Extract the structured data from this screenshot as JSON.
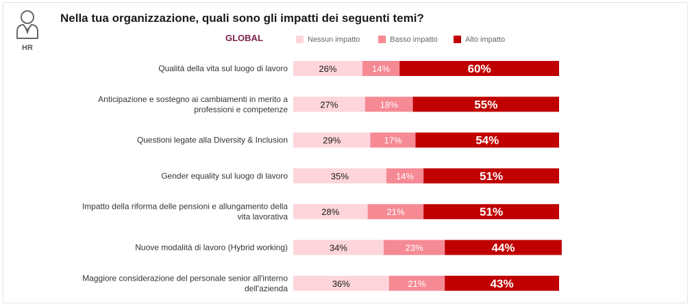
{
  "header": {
    "title": "Nella tua organizzazione, quali sono gli impatti dei seguenti temi?",
    "subtitle": "GLOBAL",
    "hr_label": "HR"
  },
  "colors": {
    "nessun": "#fdd5da",
    "basso": "#f58a95",
    "alto": "#c00000"
  },
  "chart_data": {
    "type": "bar",
    "orientation": "horizontal",
    "stacked": true,
    "legend_position": "top",
    "categories": [
      "Qualità della vita sul luogo di lavoro",
      "Anticipazione e sostegno ai cambiamenti in merito a professioni e competenze",
      "Questioni legate alla Diversity & Inclusion",
      "Gender equality sul luogo di lavoro",
      "Impatto della riforma delle pensioni e allungamento della vita lavorativa",
      "Nuove modalità di lavoro (Hybrid working)",
      "Maggiore considerazione del personale senior all'interno dell'azienda"
    ],
    "category_lines": [
      [
        "Qualità della vita sul luogo di lavoro"
      ],
      [
        "Anticipazione e sostegno ai cambiamenti in merito a",
        "professioni e competenze"
      ],
      [
        "Questioni legate alla Diversity & Inclusion"
      ],
      [
        "Gender equality sul luogo di lavoro"
      ],
      [
        "Impatto della riforma delle pensioni e allungamento della",
        "vita lavorativa"
      ],
      [
        "Nuove modalità di lavoro (Hybrid working)"
      ],
      [
        "Maggiore considerazione del personale senior all'interno",
        "dell'azienda"
      ]
    ],
    "series": [
      {
        "name": "Nessun impatto",
        "values": [
          26,
          27,
          29,
          35,
          28,
          34,
          36
        ],
        "labels": [
          "26%",
          "27%",
          "29%",
          "35%",
          "28%",
          "34%",
          "36%"
        ]
      },
      {
        "name": "Basso impatto",
        "values": [
          14,
          18,
          17,
          14,
          21,
          23,
          21
        ],
        "labels": [
          "14%",
          "18%",
          "17%",
          "14%",
          "21%",
          "23%",
          "21%"
        ]
      },
      {
        "name": "Alto impatto",
        "values": [
          60,
          55,
          54,
          51,
          51,
          44,
          43
        ],
        "labels": [
          "60%",
          "55%",
          "54%",
          "51%",
          "51%",
          "44%",
          "43%"
        ]
      }
    ],
    "xlim": [
      0,
      100
    ]
  }
}
